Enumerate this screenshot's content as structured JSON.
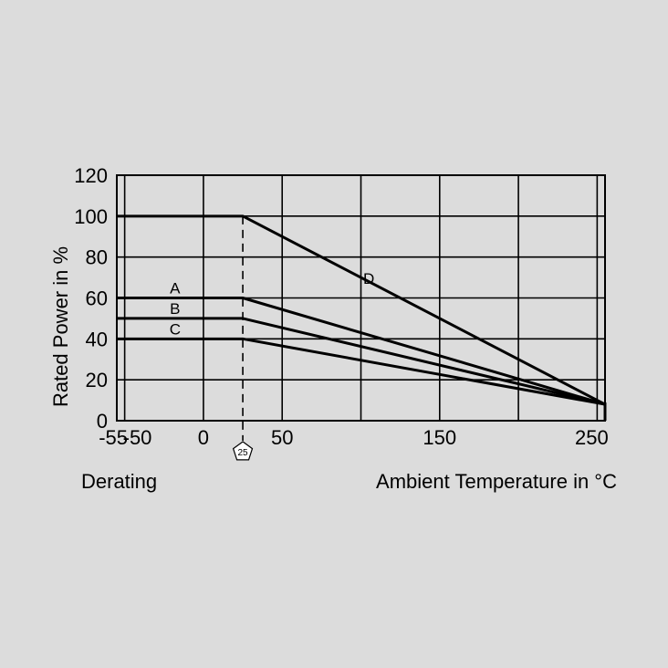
{
  "chart_data": {
    "type": "line",
    "title": "",
    "xlabel": "Ambient Temperature in °C",
    "ylabel": "Rated Power in %",
    "footer_left": "Derating",
    "x_tick_labels": [
      "-55",
      "-50",
      "0",
      "50",
      "150",
      "250"
    ],
    "x_ticks": [
      -55,
      -50,
      0,
      50,
      150,
      250
    ],
    "x_gridlines": [
      -55,
      -50,
      0,
      25,
      50,
      100,
      150,
      200,
      250
    ],
    "y_ticks": [
      0,
      20,
      40,
      60,
      80,
      100,
      120
    ],
    "xlim": [
      -55,
      255
    ],
    "ylim": [
      0,
      120
    ],
    "grid": true,
    "marker": {
      "x": 25,
      "label": "25"
    },
    "series": [
      {
        "name": "D",
        "x": [
          -55,
          25,
          255
        ],
        "y": [
          100,
          100,
          8
        ]
      },
      {
        "name": "A",
        "x": [
          -55,
          25,
          255
        ],
        "y": [
          60,
          60,
          8
        ]
      },
      {
        "name": "B",
        "x": [
          -55,
          25,
          255
        ],
        "y": [
          50,
          50,
          8
        ]
      },
      {
        "name": "C",
        "x": [
          -55,
          25,
          255
        ],
        "y": [
          40,
          40,
          8
        ]
      }
    ]
  },
  "colors": {
    "line": "#000000",
    "background": "#dcdcdc"
  }
}
